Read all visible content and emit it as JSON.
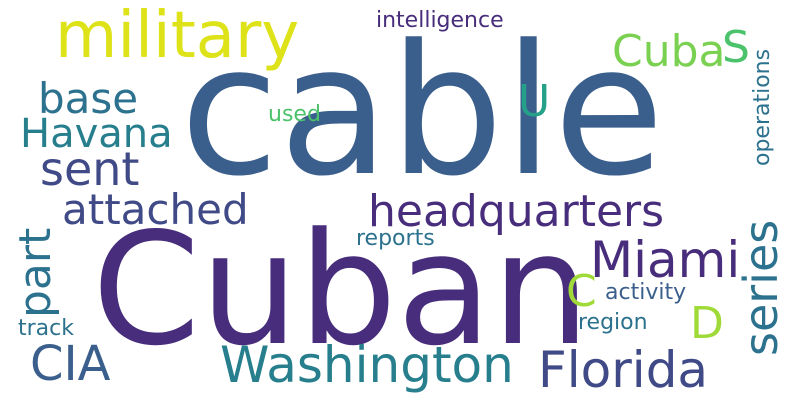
{
  "palette": {
    "background": "#ffffff",
    "deep_purple": "#472d7b",
    "blue": "#3b5f8c",
    "slate": "#404a86",
    "teal": "#277f8e",
    "teal_blue": "#2c728e",
    "green_teal": "#25a18a",
    "green": "#4cc26c",
    "light_green": "#7ad151",
    "lime": "#a0da39",
    "yellow": "#dde318"
  },
  "words": [
    {
      "text": "Cuban"
    },
    {
      "text": "cable"
    },
    {
      "text": "military"
    },
    {
      "text": "headquarters"
    },
    {
      "text": "Washington"
    },
    {
      "text": "Florida"
    },
    {
      "text": "Havana"
    },
    {
      "text": "attached"
    },
    {
      "text": "Miami"
    },
    {
      "text": "sent"
    },
    {
      "text": "base"
    },
    {
      "text": "Cuba"
    },
    {
      "text": "CIA"
    },
    {
      "text": "series"
    },
    {
      "text": "part"
    },
    {
      "text": "S"
    },
    {
      "text": "U"
    },
    {
      "text": "C"
    },
    {
      "text": "D"
    },
    {
      "text": "intelligence"
    },
    {
      "text": "operations"
    },
    {
      "text": "used"
    },
    {
      "text": "reports"
    },
    {
      "text": "activity"
    },
    {
      "text": "region"
    },
    {
      "text": "track"
    }
  ]
}
